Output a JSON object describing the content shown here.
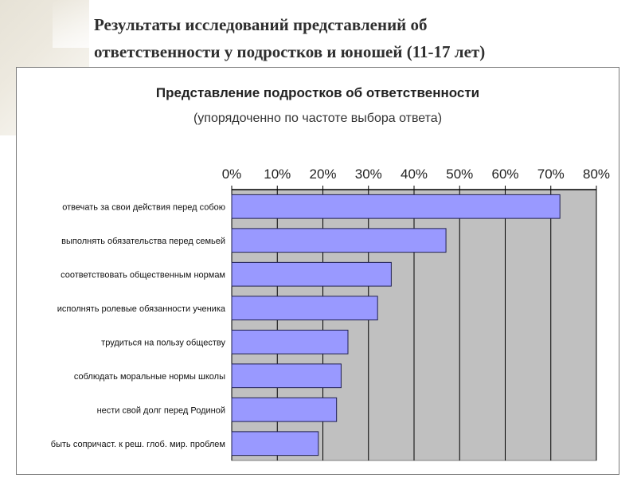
{
  "slide": {
    "title_line1": "Результаты исследований представлений об",
    "title_line2": "ответственности у подростков и юношей (11-17 лет)"
  },
  "chart_data": {
    "type": "bar",
    "orientation": "horizontal",
    "title": "Представление подростков об ответственности",
    "subtitle": "(упорядоченно по частоте выбора ответа)",
    "categories": [
      "отвечать за свои действия перед собою",
      "выполнять обязательства перед семьей",
      "соответствовать общественным нормам",
      "исполнять ролевые обязанности ученика",
      "трудиться на пользу обществу",
      "соблюдать моральные нормы школы",
      "нести свой долг перед Родиной",
      "быть сопричаст. к реш. глоб. мир. проблем"
    ],
    "values": [
      72,
      47,
      35,
      32,
      25.5,
      24,
      23,
      19
    ],
    "xlim": [
      0,
      80
    ],
    "ticks": [
      "0%",
      "10%",
      "20%",
      "30%",
      "40%",
      "50%",
      "60%",
      "70%",
      "80%"
    ],
    "tick_values": [
      0,
      10,
      20,
      30,
      40,
      50,
      60,
      70,
      80
    ],
    "axis_position": "top",
    "grid": true,
    "bar_color": "#9999ff",
    "plot_background": "#c0c0c0"
  }
}
